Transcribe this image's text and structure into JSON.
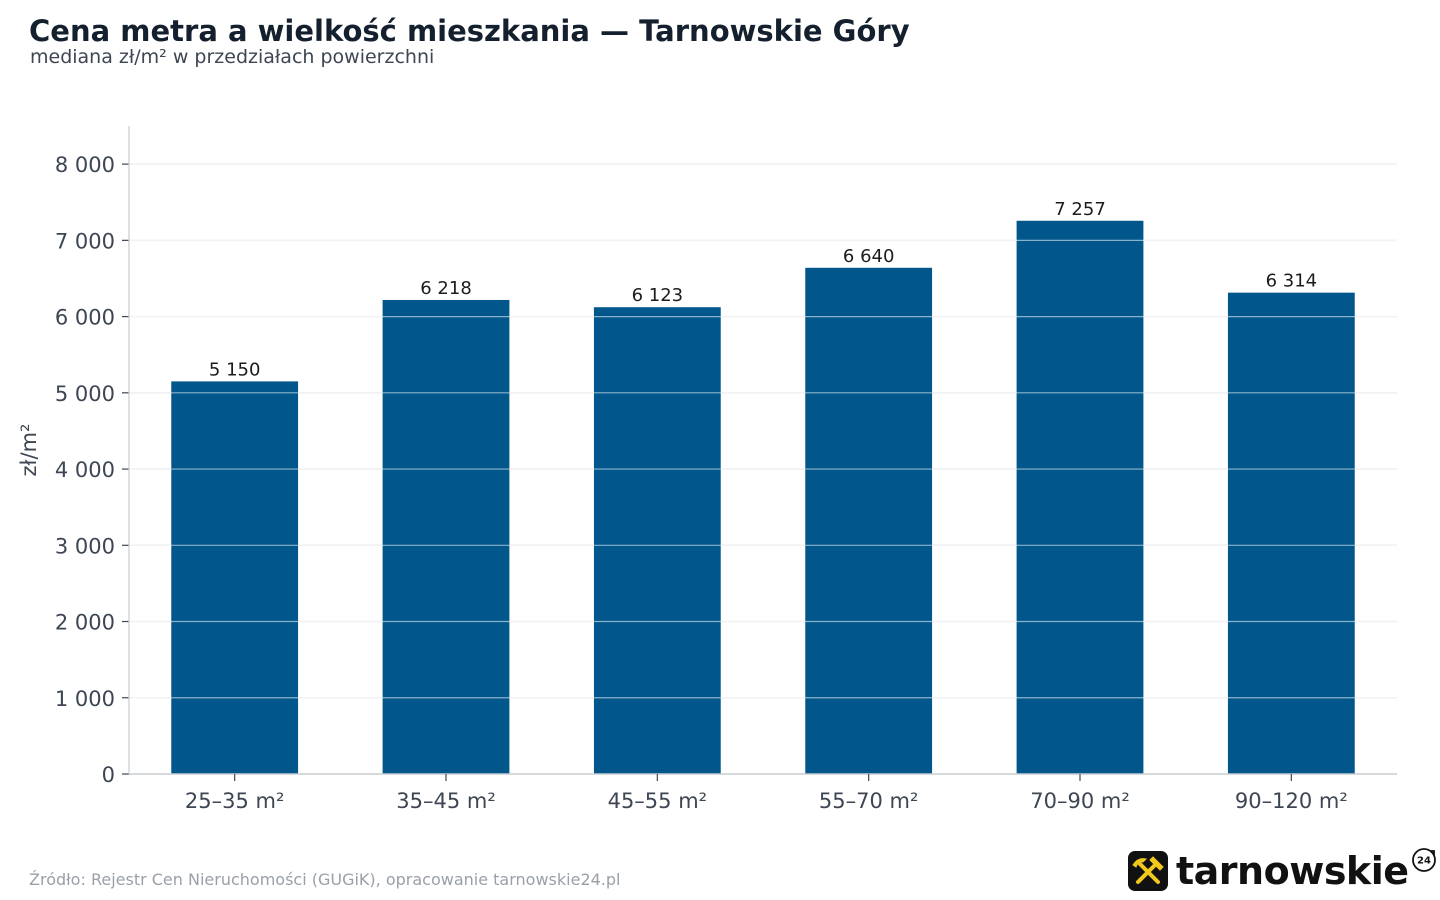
{
  "header": {
    "title": "Cena metra a wielkość mieszkania — Tarnowskie Góry",
    "subtitle": "mediana zł/m² w przedziałach powierzchni"
  },
  "footer": {
    "source": "Źródło: Rejestr Cen Nieruchomości (GUGiK), opracowanie tarnowskie24.pl"
  },
  "brand": {
    "name": "tarnowskie",
    "badge": "24",
    "logo_icon": "hammer-pick-icon",
    "logo_color": "#f2c81c"
  },
  "colors": {
    "bar": "#01568c",
    "grid": "#e3e6ea",
    "axis": "#c9cdd2",
    "tick_text": "#3d4652",
    "label_text": "#1c1c1c"
  },
  "chart_data": {
    "type": "bar",
    "title": "Cena metra a wielkość mieszkania — Tarnowskie Góry",
    "subtitle": "mediana zł/m² w przedziałach powierzchni",
    "xlabel": "",
    "ylabel": "zł/m²",
    "categories": [
      "25–35 m²",
      "35–45 m²",
      "45–55 m²",
      "55–70 m²",
      "70–90 m²",
      "90–120 m²"
    ],
    "values": [
      5150,
      6218,
      6123,
      6640,
      7257,
      6314
    ],
    "value_labels": [
      "5 150",
      "6 218",
      "6 123",
      "6 640",
      "7 257",
      "6 314"
    ],
    "yticks": [
      0,
      1000,
      2000,
      3000,
      4000,
      5000,
      6000,
      7000,
      8000
    ],
    "ytick_labels": [
      "0",
      "1 000",
      "2 000",
      "3 000",
      "4 000",
      "5 000",
      "6 000",
      "7 000",
      "8 000"
    ],
    "ylim": [
      0,
      8500
    ],
    "grid": true,
    "legend": "none"
  }
}
